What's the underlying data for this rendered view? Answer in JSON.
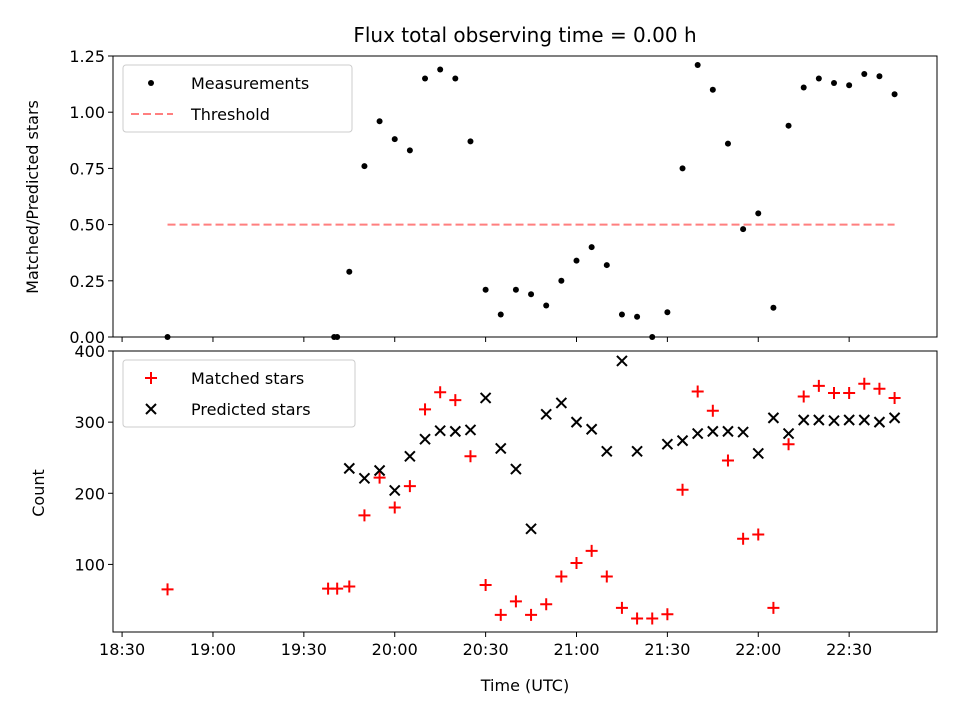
{
  "title": "Flux total observing time = 0.00 h",
  "chart_data": [
    {
      "type": "scatter",
      "ylabel": "Matched/Predicted stars",
      "xlim": [
        "18:27",
        "22:59"
      ],
      "ylim": [
        0,
        1.25
      ],
      "yticks": [
        0.0,
        0.25,
        0.5,
        0.75,
        1.0,
        1.25
      ],
      "ytick_labels": [
        "0.00",
        "0.25",
        "0.50",
        "0.75",
        "1.00",
        "1.25"
      ],
      "legend_position": "upper-left",
      "series": [
        {
          "name": "Measurements",
          "marker": "dot",
          "color": "#000000",
          "points": [
            [
              "18:45",
              0.0
            ],
            [
              "19:40",
              0.0
            ],
            [
              "19:41",
              0.0
            ],
            [
              "19:45",
              0.29
            ],
            [
              "19:50",
              0.76
            ],
            [
              "19:55",
              0.96
            ],
            [
              "20:00",
              0.88
            ],
            [
              "20:05",
              0.83
            ],
            [
              "20:10",
              1.15
            ],
            [
              "20:15",
              1.19
            ],
            [
              "20:20",
              1.15
            ],
            [
              "20:25",
              0.87
            ],
            [
              "20:30",
              0.21
            ],
            [
              "20:35",
              0.1
            ],
            [
              "20:40",
              0.21
            ],
            [
              "20:45",
              0.19
            ],
            [
              "20:50",
              0.14
            ],
            [
              "20:55",
              0.25
            ],
            [
              "21:00",
              0.34
            ],
            [
              "21:05",
              0.4
            ],
            [
              "21:10",
              0.32
            ],
            [
              "21:15",
              0.1
            ],
            [
              "21:20",
              0.09
            ],
            [
              "21:25",
              0.0
            ],
            [
              "21:30",
              0.11
            ],
            [
              "21:35",
              0.75
            ],
            [
              "21:40",
              1.21
            ],
            [
              "21:45",
              1.1
            ],
            [
              "21:50",
              0.86
            ],
            [
              "21:55",
              0.48
            ],
            [
              "22:00",
              0.55
            ],
            [
              "22:05",
              0.13
            ],
            [
              "22:10",
              0.94
            ],
            [
              "22:15",
              1.11
            ],
            [
              "22:20",
              1.15
            ],
            [
              "22:25",
              1.13
            ],
            [
              "22:30",
              1.12
            ],
            [
              "22:35",
              1.17
            ],
            [
              "22:40",
              1.16
            ],
            [
              "22:45",
              1.08
            ]
          ]
        },
        {
          "name": "Threshold",
          "style": "dashed-line",
          "color": "#ff7f7f",
          "points": [
            [
              "18:45",
              0.5
            ],
            [
              "22:45",
              0.5
            ]
          ]
        }
      ]
    },
    {
      "type": "scatter",
      "xlabel": "Time (UTC)",
      "ylabel": "Count",
      "xlim": [
        "18:27",
        "22:59"
      ],
      "ylim": [
        5,
        400
      ],
      "yticks": [
        100,
        200,
        300,
        400
      ],
      "ytick_labels": [
        "100",
        "200",
        "300",
        "400"
      ],
      "xticks": [
        "18:30",
        "19:00",
        "19:30",
        "20:00",
        "20:30",
        "21:00",
        "21:30",
        "22:00",
        "22:30"
      ],
      "legend_position": "upper-left",
      "series": [
        {
          "name": "Matched stars",
          "marker": "plus",
          "color": "#ff0000",
          "points": [
            [
              "18:45",
              65
            ],
            [
              "19:38",
              66
            ],
            [
              "19:41",
              66
            ],
            [
              "19:45",
              69
            ],
            [
              "19:50",
              169
            ],
            [
              "19:55",
              222
            ],
            [
              "20:00",
              180
            ],
            [
              "20:05",
              210
            ],
            [
              "20:10",
              318
            ],
            [
              "20:15",
              342
            ],
            [
              "20:20",
              331
            ],
            [
              "20:25",
              252
            ],
            [
              "20:30",
              71
            ],
            [
              "20:35",
              29
            ],
            [
              "20:40",
              48
            ],
            [
              "20:45",
              29
            ],
            [
              "20:50",
              44
            ],
            [
              "20:55",
              83
            ],
            [
              "21:00",
              102
            ],
            [
              "21:05",
              119
            ],
            [
              "21:10",
              83
            ],
            [
              "21:15",
              39
            ],
            [
              "21:20",
              24
            ],
            [
              "21:25",
              24
            ],
            [
              "21:30",
              30
            ],
            [
              "21:35",
              205
            ],
            [
              "21:40",
              343
            ],
            [
              "21:45",
              316
            ],
            [
              "21:50",
              246
            ],
            [
              "21:55",
              136
            ],
            [
              "22:00",
              142
            ],
            [
              "22:05",
              39
            ],
            [
              "22:10",
              269
            ],
            [
              "22:15",
              336
            ],
            [
              "22:20",
              351
            ],
            [
              "22:25",
              341
            ],
            [
              "22:30",
              341
            ],
            [
              "22:35",
              354
            ],
            [
              "22:40",
              347
            ],
            [
              "22:45",
              334
            ]
          ]
        },
        {
          "name": "Predicted stars",
          "marker": "x",
          "color": "#000000",
          "points": [
            [
              "19:45",
              235
            ],
            [
              "19:50",
              221
            ],
            [
              "19:55",
              232
            ],
            [
              "20:00",
              204
            ],
            [
              "20:05",
              252
            ],
            [
              "20:10",
              276
            ],
            [
              "20:15",
              288
            ],
            [
              "20:20",
              287
            ],
            [
              "20:25",
              289
            ],
            [
              "20:30",
              334
            ],
            [
              "20:35",
              263
            ],
            [
              "20:40",
              234
            ],
            [
              "20:45",
              150
            ],
            [
              "20:50",
              311
            ],
            [
              "20:55",
              327
            ],
            [
              "21:00",
              300
            ],
            [
              "21:05",
              290
            ],
            [
              "21:10",
              259
            ],
            [
              "21:15",
              386
            ],
            [
              "21:20",
              259
            ],
            [
              "21:30",
              269
            ],
            [
              "21:35",
              274
            ],
            [
              "21:40",
              284
            ],
            [
              "21:45",
              287
            ],
            [
              "21:50",
              287
            ],
            [
              "21:55",
              286
            ],
            [
              "22:00",
              256
            ],
            [
              "22:05",
              306
            ],
            [
              "22:10",
              284
            ],
            [
              "22:15",
              303
            ],
            [
              "22:20",
              303
            ],
            [
              "22:25",
              302
            ],
            [
              "22:30",
              303
            ],
            [
              "22:35",
              303
            ],
            [
              "22:40",
              300
            ],
            [
              "22:45",
              306
            ]
          ]
        }
      ]
    }
  ]
}
